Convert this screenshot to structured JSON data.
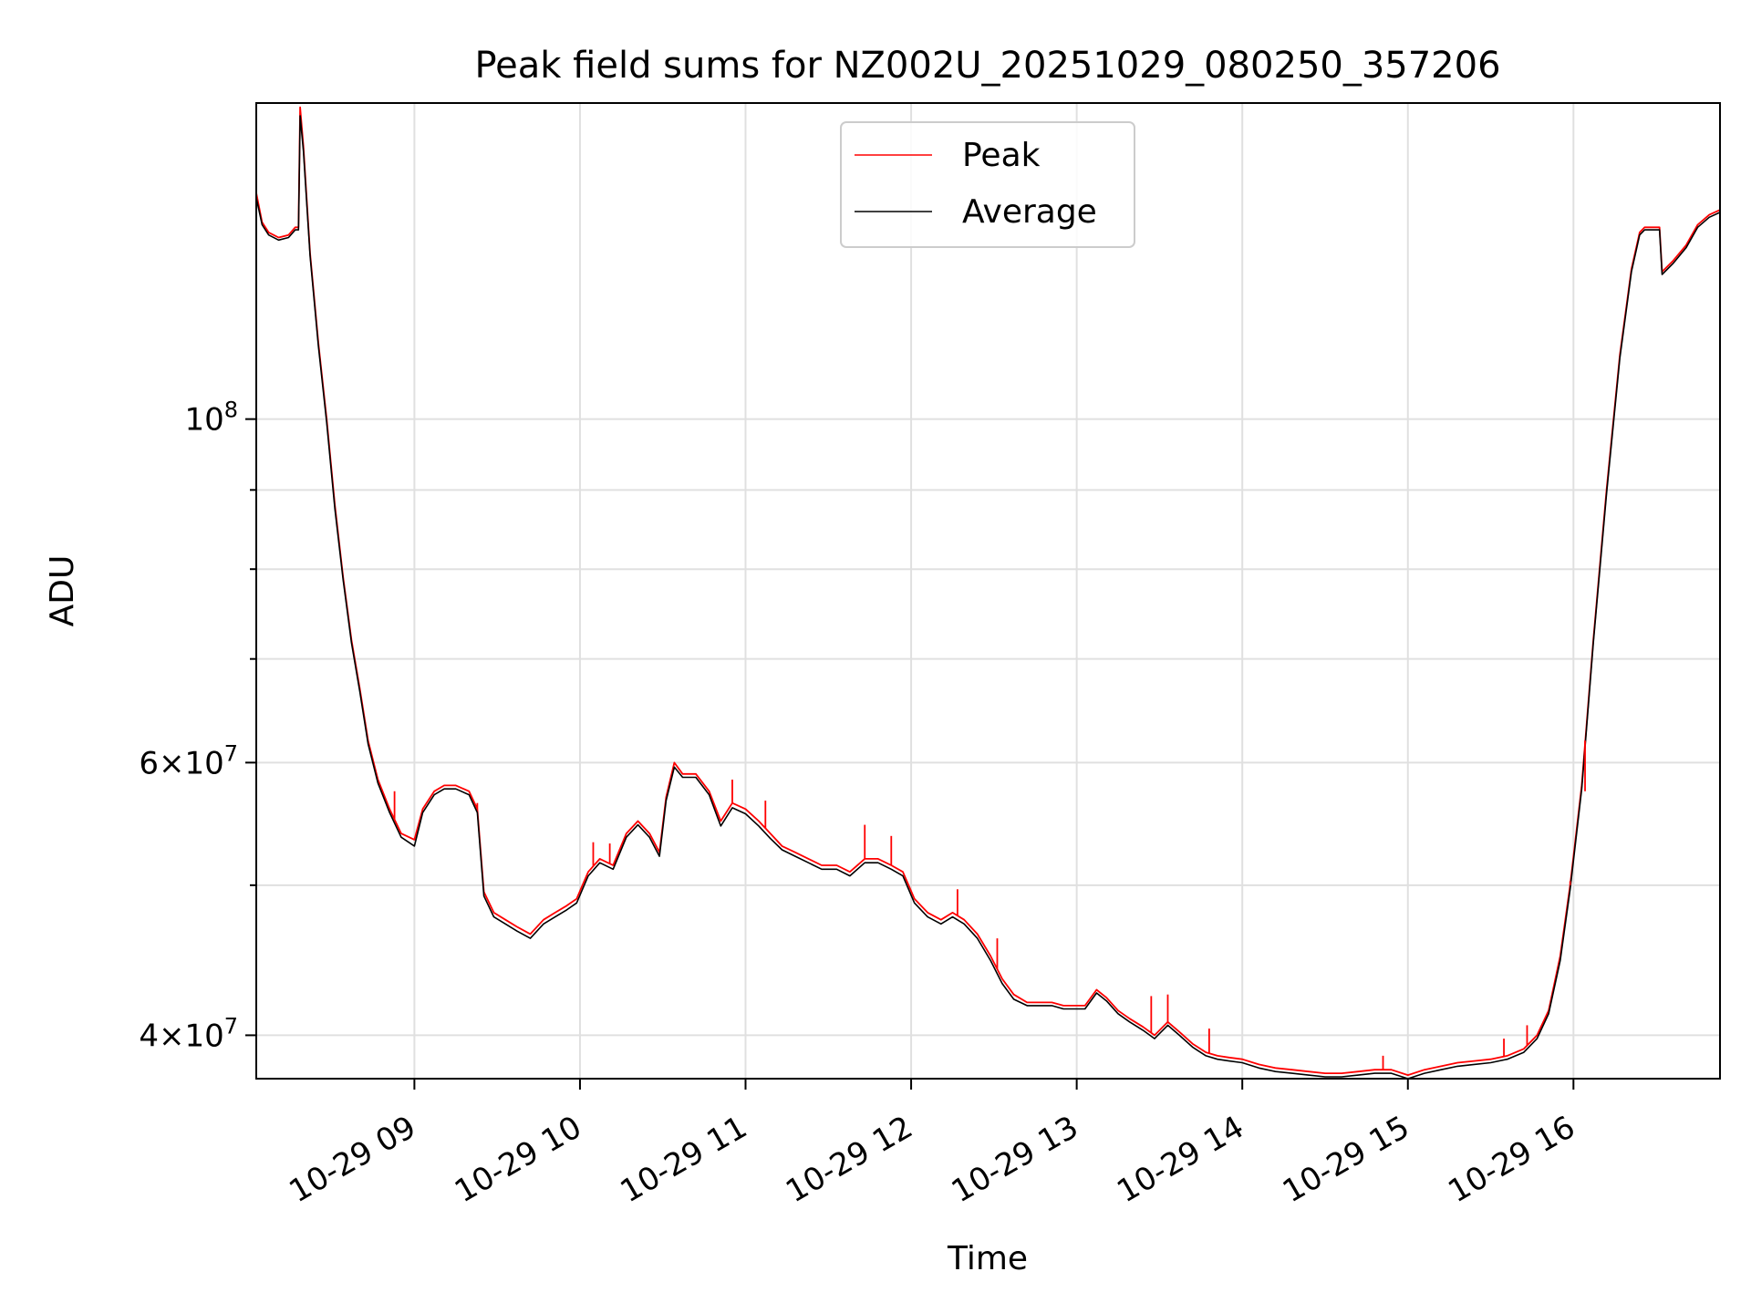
{
  "chart_data": {
    "type": "line",
    "title": "Peak field sums for NZ002U_20251029_080250_357206",
    "xlabel": "Time",
    "ylabel": "ADU",
    "yscale": "log",
    "ylim": [
      37500000,
      160000000
    ],
    "xlim_hours": [
      8.045,
      16.885
    ],
    "grid": true,
    "legend_position": "top-center",
    "x_ticks": [
      {
        "hour": 9,
        "label": "10-29 09"
      },
      {
        "hour": 10,
        "label": "10-29 10"
      },
      {
        "hour": 11,
        "label": "10-29 11"
      },
      {
        "hour": 12,
        "label": "10-29 12"
      },
      {
        "hour": 13,
        "label": "10-29 13"
      },
      {
        "hour": 14,
        "label": "10-29 14"
      },
      {
        "hour": 15,
        "label": "10-29 15"
      },
      {
        "hour": 16,
        "label": "10-29 16"
      }
    ],
    "y_ticks": [
      {
        "value": 40000000,
        "mantissa": "4",
        "exponent": "7",
        "labeled": true
      },
      {
        "value": 50000000,
        "labeled": false
      },
      {
        "value": 60000000,
        "mantissa": "6",
        "exponent": "7",
        "labeled": true
      },
      {
        "value": 70000000,
        "labeled": false
      },
      {
        "value": 80000000,
        "labeled": false
      },
      {
        "value": 90000000,
        "labeled": false
      },
      {
        "value": 100000000,
        "base": "10",
        "exponent": "8",
        "labeled": true
      }
    ],
    "series": [
      {
        "name": "Peak",
        "color": "#ff0000",
        "points": [
          [
            8.045,
            140000000
          ],
          [
            8.08,
            134000000
          ],
          [
            8.12,
            132000000
          ],
          [
            8.18,
            131000000
          ],
          [
            8.24,
            131500000
          ],
          [
            8.28,
            133000000
          ],
          [
            8.3,
            133000000
          ],
          [
            8.31,
            159000000
          ],
          [
            8.33,
            150000000
          ],
          [
            8.37,
            128000000
          ],
          [
            8.42,
            112000000
          ],
          [
            8.47,
            100000000
          ],
          [
            8.52,
            88000000
          ],
          [
            8.57,
            79000000
          ],
          [
            8.62,
            72000000
          ],
          [
            8.67,
            67000000
          ],
          [
            8.72,
            62000000
          ],
          [
            8.78,
            58500000
          ],
          [
            8.85,
            56000000
          ],
          [
            8.92,
            54000000
          ],
          [
            9.0,
            53500000
          ],
          [
            9.05,
            56000000
          ],
          [
            9.12,
            57500000
          ],
          [
            9.18,
            58000000
          ],
          [
            9.25,
            58000000
          ],
          [
            9.33,
            57500000
          ],
          [
            9.38,
            56000000
          ],
          [
            9.42,
            49500000
          ],
          [
            9.48,
            48000000
          ],
          [
            9.55,
            47500000
          ],
          [
            9.62,
            47000000
          ],
          [
            9.7,
            46500000
          ],
          [
            9.78,
            47500000
          ],
          [
            9.85,
            48000000
          ],
          [
            9.92,
            48500000
          ],
          [
            9.98,
            49000000
          ],
          [
            10.05,
            51000000
          ],
          [
            10.12,
            52000000
          ],
          [
            10.2,
            51500000
          ],
          [
            10.28,
            54000000
          ],
          [
            10.35,
            55000000
          ],
          [
            10.42,
            54000000
          ],
          [
            10.48,
            52500000
          ],
          [
            10.52,
            57000000
          ],
          [
            10.57,
            60000000
          ],
          [
            10.62,
            59000000
          ],
          [
            10.7,
            59000000
          ],
          [
            10.78,
            57500000
          ],
          [
            10.85,
            55000000
          ],
          [
            10.92,
            56500000
          ],
          [
            11.0,
            56000000
          ],
          [
            11.08,
            55000000
          ],
          [
            11.15,
            54000000
          ],
          [
            11.22,
            53000000
          ],
          [
            11.3,
            52500000
          ],
          [
            11.38,
            52000000
          ],
          [
            11.46,
            51500000
          ],
          [
            11.55,
            51500000
          ],
          [
            11.63,
            51000000
          ],
          [
            11.72,
            52000000
          ],
          [
            11.8,
            52000000
          ],
          [
            11.88,
            51500000
          ],
          [
            11.95,
            51000000
          ],
          [
            12.02,
            49000000
          ],
          [
            12.1,
            48000000
          ],
          [
            12.18,
            47500000
          ],
          [
            12.25,
            48000000
          ],
          [
            12.32,
            47500000
          ],
          [
            12.4,
            46500000
          ],
          [
            12.48,
            45000000
          ],
          [
            12.55,
            43500000
          ],
          [
            12.62,
            42500000
          ],
          [
            12.7,
            42000000
          ],
          [
            12.78,
            42000000
          ],
          [
            12.85,
            42000000
          ],
          [
            12.92,
            41800000
          ],
          [
            13.0,
            41800000
          ],
          [
            13.05,
            41800000
          ],
          [
            13.12,
            42800000
          ],
          [
            13.18,
            42300000
          ],
          [
            13.25,
            41500000
          ],
          [
            13.32,
            41000000
          ],
          [
            13.4,
            40500000
          ],
          [
            13.47,
            40000000
          ],
          [
            13.55,
            40800000
          ],
          [
            13.62,
            40200000
          ],
          [
            13.7,
            39500000
          ],
          [
            13.78,
            39000000
          ],
          [
            13.85,
            38800000
          ],
          [
            13.92,
            38700000
          ],
          [
            14.0,
            38600000
          ],
          [
            14.1,
            38300000
          ],
          [
            14.2,
            38100000
          ],
          [
            14.3,
            38000000
          ],
          [
            14.4,
            37900000
          ],
          [
            14.5,
            37800000
          ],
          [
            14.6,
            37800000
          ],
          [
            14.7,
            37900000
          ],
          [
            14.8,
            38000000
          ],
          [
            14.9,
            38000000
          ],
          [
            15.0,
            37700000
          ],
          [
            15.1,
            38000000
          ],
          [
            15.2,
            38200000
          ],
          [
            15.3,
            38400000
          ],
          [
            15.4,
            38500000
          ],
          [
            15.5,
            38600000
          ],
          [
            15.6,
            38800000
          ],
          [
            15.7,
            39200000
          ],
          [
            15.78,
            40000000
          ],
          [
            15.85,
            41500000
          ],
          [
            15.92,
            45000000
          ],
          [
            15.98,
            50000000
          ],
          [
            16.05,
            58000000
          ],
          [
            16.12,
            72000000
          ],
          [
            16.2,
            90000000
          ],
          [
            16.28,
            110000000
          ],
          [
            16.35,
            125000000
          ],
          [
            16.4,
            132000000
          ],
          [
            16.43,
            133000000
          ],
          [
            16.5,
            133000000
          ],
          [
            16.52,
            133000000
          ],
          [
            16.535,
            124500000
          ],
          [
            16.6,
            126500000
          ],
          [
            16.68,
            129500000
          ],
          [
            16.75,
            133500000
          ],
          [
            16.82,
            135500000
          ],
          [
            16.885,
            136500000
          ]
        ]
      },
      {
        "name": "Average",
        "color": "#000000",
        "points": [
          [
            8.045,
            139000000
          ],
          [
            8.08,
            133500000
          ],
          [
            8.12,
            131500000
          ],
          [
            8.18,
            130500000
          ],
          [
            8.24,
            131000000
          ],
          [
            8.28,
            132500000
          ],
          [
            8.3,
            132500000
          ],
          [
            8.31,
            157000000
          ],
          [
            8.33,
            149000000
          ],
          [
            8.37,
            127500000
          ],
          [
            8.42,
            111500000
          ],
          [
            8.47,
            99500000
          ],
          [
            8.52,
            87500000
          ],
          [
            8.57,
            78700000
          ],
          [
            8.62,
            71700000
          ],
          [
            8.67,
            66700000
          ],
          [
            8.72,
            61700000
          ],
          [
            8.78,
            58200000
          ],
          [
            8.85,
            55700000
          ],
          [
            8.92,
            53700000
          ],
          [
            9.0,
            53000000
          ],
          [
            9.05,
            55700000
          ],
          [
            9.12,
            57200000
          ],
          [
            9.18,
            57700000
          ],
          [
            9.25,
            57700000
          ],
          [
            9.33,
            57200000
          ],
          [
            9.38,
            55700000
          ],
          [
            9.42,
            49200000
          ],
          [
            9.48,
            47700000
          ],
          [
            9.55,
            47200000
          ],
          [
            9.62,
            46700000
          ],
          [
            9.7,
            46200000
          ],
          [
            9.78,
            47200000
          ],
          [
            9.85,
            47700000
          ],
          [
            9.92,
            48200000
          ],
          [
            9.98,
            48700000
          ],
          [
            10.05,
            50700000
          ],
          [
            10.12,
            51700000
          ],
          [
            10.2,
            51200000
          ],
          [
            10.28,
            53700000
          ],
          [
            10.35,
            54700000
          ],
          [
            10.42,
            53700000
          ],
          [
            10.48,
            52200000
          ],
          [
            10.52,
            56700000
          ],
          [
            10.57,
            59600000
          ],
          [
            10.62,
            58700000
          ],
          [
            10.7,
            58700000
          ],
          [
            10.78,
            57200000
          ],
          [
            10.85,
            54600000
          ],
          [
            10.92,
            56100000
          ],
          [
            11.0,
            55600000
          ],
          [
            11.08,
            54600000
          ],
          [
            11.15,
            53600000
          ],
          [
            11.22,
            52700000
          ],
          [
            11.3,
            52200000
          ],
          [
            11.38,
            51700000
          ],
          [
            11.46,
            51200000
          ],
          [
            11.55,
            51200000
          ],
          [
            11.63,
            50700000
          ],
          [
            11.72,
            51700000
          ],
          [
            11.8,
            51700000
          ],
          [
            11.88,
            51200000
          ],
          [
            11.95,
            50700000
          ],
          [
            12.02,
            48700000
          ],
          [
            12.1,
            47700000
          ],
          [
            12.18,
            47200000
          ],
          [
            12.25,
            47700000
          ],
          [
            12.32,
            47200000
          ],
          [
            12.4,
            46200000
          ],
          [
            12.48,
            44700000
          ],
          [
            12.55,
            43200000
          ],
          [
            12.62,
            42200000
          ],
          [
            12.7,
            41800000
          ],
          [
            12.78,
            41800000
          ],
          [
            12.85,
            41800000
          ],
          [
            12.92,
            41600000
          ],
          [
            13.0,
            41600000
          ],
          [
            13.05,
            41600000
          ],
          [
            13.12,
            42600000
          ],
          [
            13.18,
            42100000
          ],
          [
            13.25,
            41300000
          ],
          [
            13.32,
            40800000
          ],
          [
            13.4,
            40300000
          ],
          [
            13.47,
            39800000
          ],
          [
            13.55,
            40600000
          ],
          [
            13.62,
            40000000
          ],
          [
            13.7,
            39300000
          ],
          [
            13.78,
            38800000
          ],
          [
            13.85,
            38600000
          ],
          [
            13.92,
            38500000
          ],
          [
            14.0,
            38400000
          ],
          [
            14.1,
            38100000
          ],
          [
            14.2,
            37900000
          ],
          [
            14.3,
            37800000
          ],
          [
            14.4,
            37700000
          ],
          [
            14.5,
            37600000
          ],
          [
            14.6,
            37600000
          ],
          [
            14.7,
            37700000
          ],
          [
            14.8,
            37800000
          ],
          [
            14.9,
            37800000
          ],
          [
            15.0,
            37500000
          ],
          [
            15.1,
            37800000
          ],
          [
            15.2,
            38000000
          ],
          [
            15.3,
            38200000
          ],
          [
            15.4,
            38300000
          ],
          [
            15.5,
            38400000
          ],
          [
            15.6,
            38600000
          ],
          [
            15.7,
            39000000
          ],
          [
            15.78,
            39800000
          ],
          [
            15.85,
            41300000
          ],
          [
            15.92,
            44700000
          ],
          [
            15.98,
            49700000
          ],
          [
            16.05,
            57700000
          ],
          [
            16.12,
            71700000
          ],
          [
            16.2,
            89500000
          ],
          [
            16.28,
            109500000
          ],
          [
            16.35,
            124500000
          ],
          [
            16.4,
            131500000
          ],
          [
            16.43,
            132500000
          ],
          [
            16.5,
            132500000
          ],
          [
            16.52,
            132500000
          ],
          [
            16.535,
            124000000
          ],
          [
            16.6,
            126000000
          ],
          [
            16.68,
            129000000
          ],
          [
            16.75,
            133000000
          ],
          [
            16.82,
            135000000
          ],
          [
            16.885,
            136000000
          ]
        ]
      }
    ],
    "peak_spikes": [
      [
        8.88,
        57500000
      ],
      [
        9.38,
        56500000
      ],
      [
        10.08,
        53300000
      ],
      [
        10.18,
        53200000
      ],
      [
        10.92,
        58500000
      ],
      [
        11.12,
        56700000
      ],
      [
        11.72,
        54700000
      ],
      [
        11.88,
        53800000
      ],
      [
        12.28,
        49700000
      ],
      [
        12.52,
        46200000
      ],
      [
        13.45,
        42400000
      ],
      [
        13.55,
        42500000
      ],
      [
        13.8,
        40400000
      ],
      [
        14.85,
        38800000
      ],
      [
        15.58,
        39800000
      ],
      [
        15.72,
        40600000
      ],
      [
        15.98,
        50300000
      ],
      [
        16.07,
        57500000
      ]
    ]
  }
}
